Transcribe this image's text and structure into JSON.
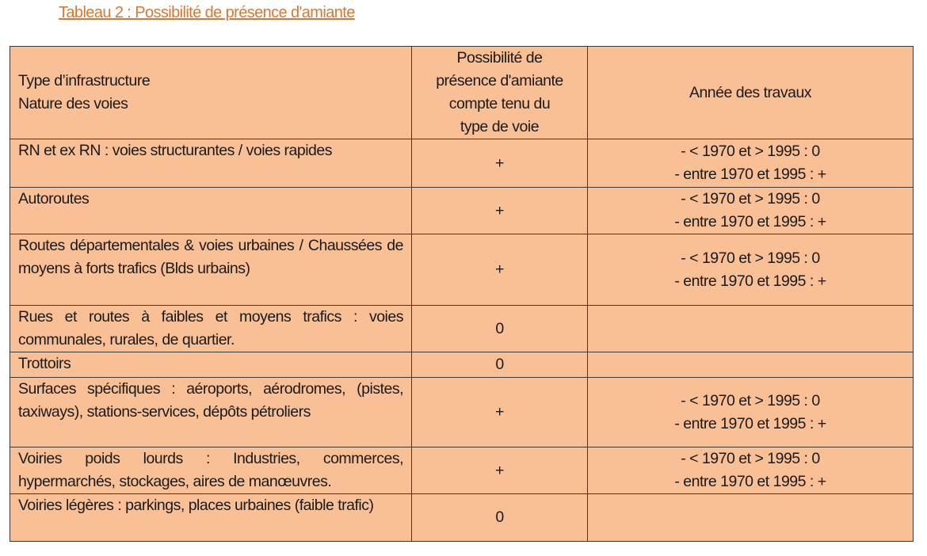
{
  "title": "Tableau 2 : Possibilité de présence d'amiante",
  "header": {
    "col1": [
      "Type d’infrastructure",
      "Nature des voies"
    ],
    "col2": [
      "Possibilité de",
      "présence d'amiante",
      "compte tenu du",
      "type de voie"
    ],
    "col3": "Année des travaux"
  },
  "rows": [
    {
      "type": "RN et ex RN : voies structurantes / voies rapides",
      "possibility": "+",
      "years": [
        "- < 1970 et > 1995 : 0",
        "- entre 1970 et 1995 : +"
      ]
    },
    {
      "type": "Autoroutes",
      "possibility": "+",
      "years": [
        "- < 1970 et > 1995 : 0",
        "- entre 1970 et 1995 : +"
      ]
    },
    {
      "type": "Routes départementales & voies urbaines / Chaussées de moyens à forts trafics (Blds urbains)",
      "possibility": "+",
      "years": [
        "- < 1970 et > 1995 : 0",
        "- entre 1970 et 1995 : +"
      ]
    },
    {
      "type": "Rues et routes à faibles et moyens trafics : voies communales, rurales, de quartier.",
      "possibility": "0",
      "years": [
        "",
        ""
      ]
    },
    {
      "type": "Trottoirs",
      "possibility": "0",
      "years": [
        "",
        ""
      ]
    },
    {
      "type": "Surfaces spécifiques : aéroports, aérodromes, (pistes, taxiways), stations-services, dépôts pétroliers",
      "possibility": "+",
      "years": [
        "- < 1970 et > 1995 : 0",
        "- entre 1970 et 1995 : +"
      ]
    },
    {
      "type": "Voiries poids lourds : Industries, commerces, hypermarchés, stockages, aires de manœuvres.",
      "possibility": "+",
      "years": [
        "- < 1970 et > 1995 : 0",
        "- entre 1970 et 1995 : +"
      ]
    },
    {
      "type": "Voiries légères : parkings, places urbaines (faible trafic)",
      "possibility": "0",
      "years": [
        "",
        ""
      ]
    }
  ],
  "colors": {
    "table_bg": "#f9bf95",
    "title": "#d9782f"
  }
}
